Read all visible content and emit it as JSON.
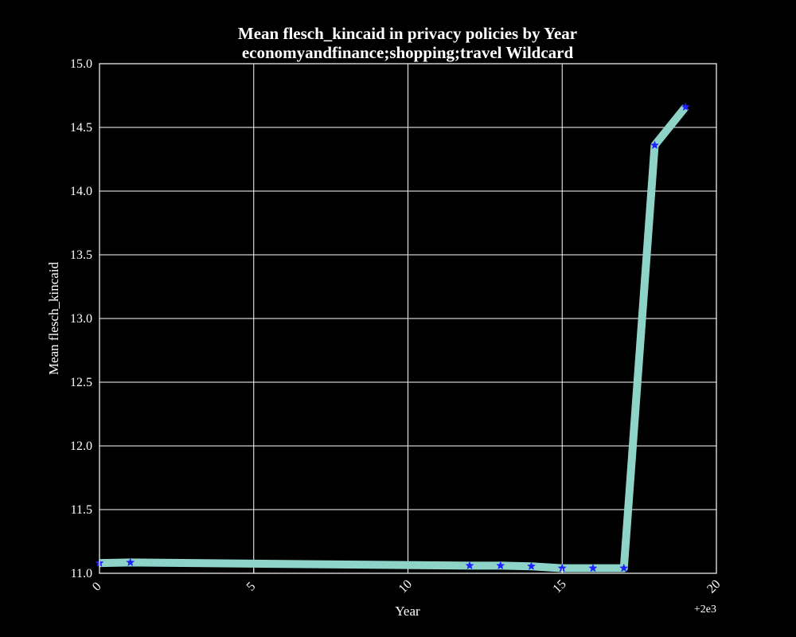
{
  "chart_data": {
    "type": "line",
    "title": "Mean flesch_kincaid in privacy policies by Year",
    "subtitle": "economyandfinance;shopping;travel Wildcard",
    "xlabel": "Year",
    "ylabel": "Mean flesch_kincaid",
    "x_offset_label": "+2e3",
    "xlim": [
      0,
      20
    ],
    "ylim": [
      11.0,
      15.0
    ],
    "x_ticks": [
      0,
      5,
      10,
      15,
      20
    ],
    "y_ticks": [
      11.0,
      11.5,
      12.0,
      12.5,
      13.0,
      13.5,
      14.0,
      14.5,
      15.0
    ],
    "x_tick_labels": [
      "0",
      "5",
      "10",
      "15",
      "20"
    ],
    "y_tick_labels": [
      "11.0",
      "11.5",
      "12.0",
      "12.5",
      "13.0",
      "13.5",
      "14.0",
      "14.5",
      "15.0"
    ],
    "grid": true,
    "series": [
      {
        "x": [
          0,
          1,
          12,
          13,
          14,
          15,
          16,
          17,
          18,
          19
        ],
        "y": [
          11.08,
          11.085,
          11.06,
          11.06,
          11.055,
          11.04,
          11.04,
          11.04,
          14.36,
          14.66
        ],
        "line_color": "#8dd3c7",
        "marker_color": "#1f1fff",
        "marker": "star"
      }
    ]
  },
  "colors": {
    "background": "#000000",
    "axes": "#ffffff",
    "grid": "#ffffff",
    "text": "#ffffff"
  }
}
